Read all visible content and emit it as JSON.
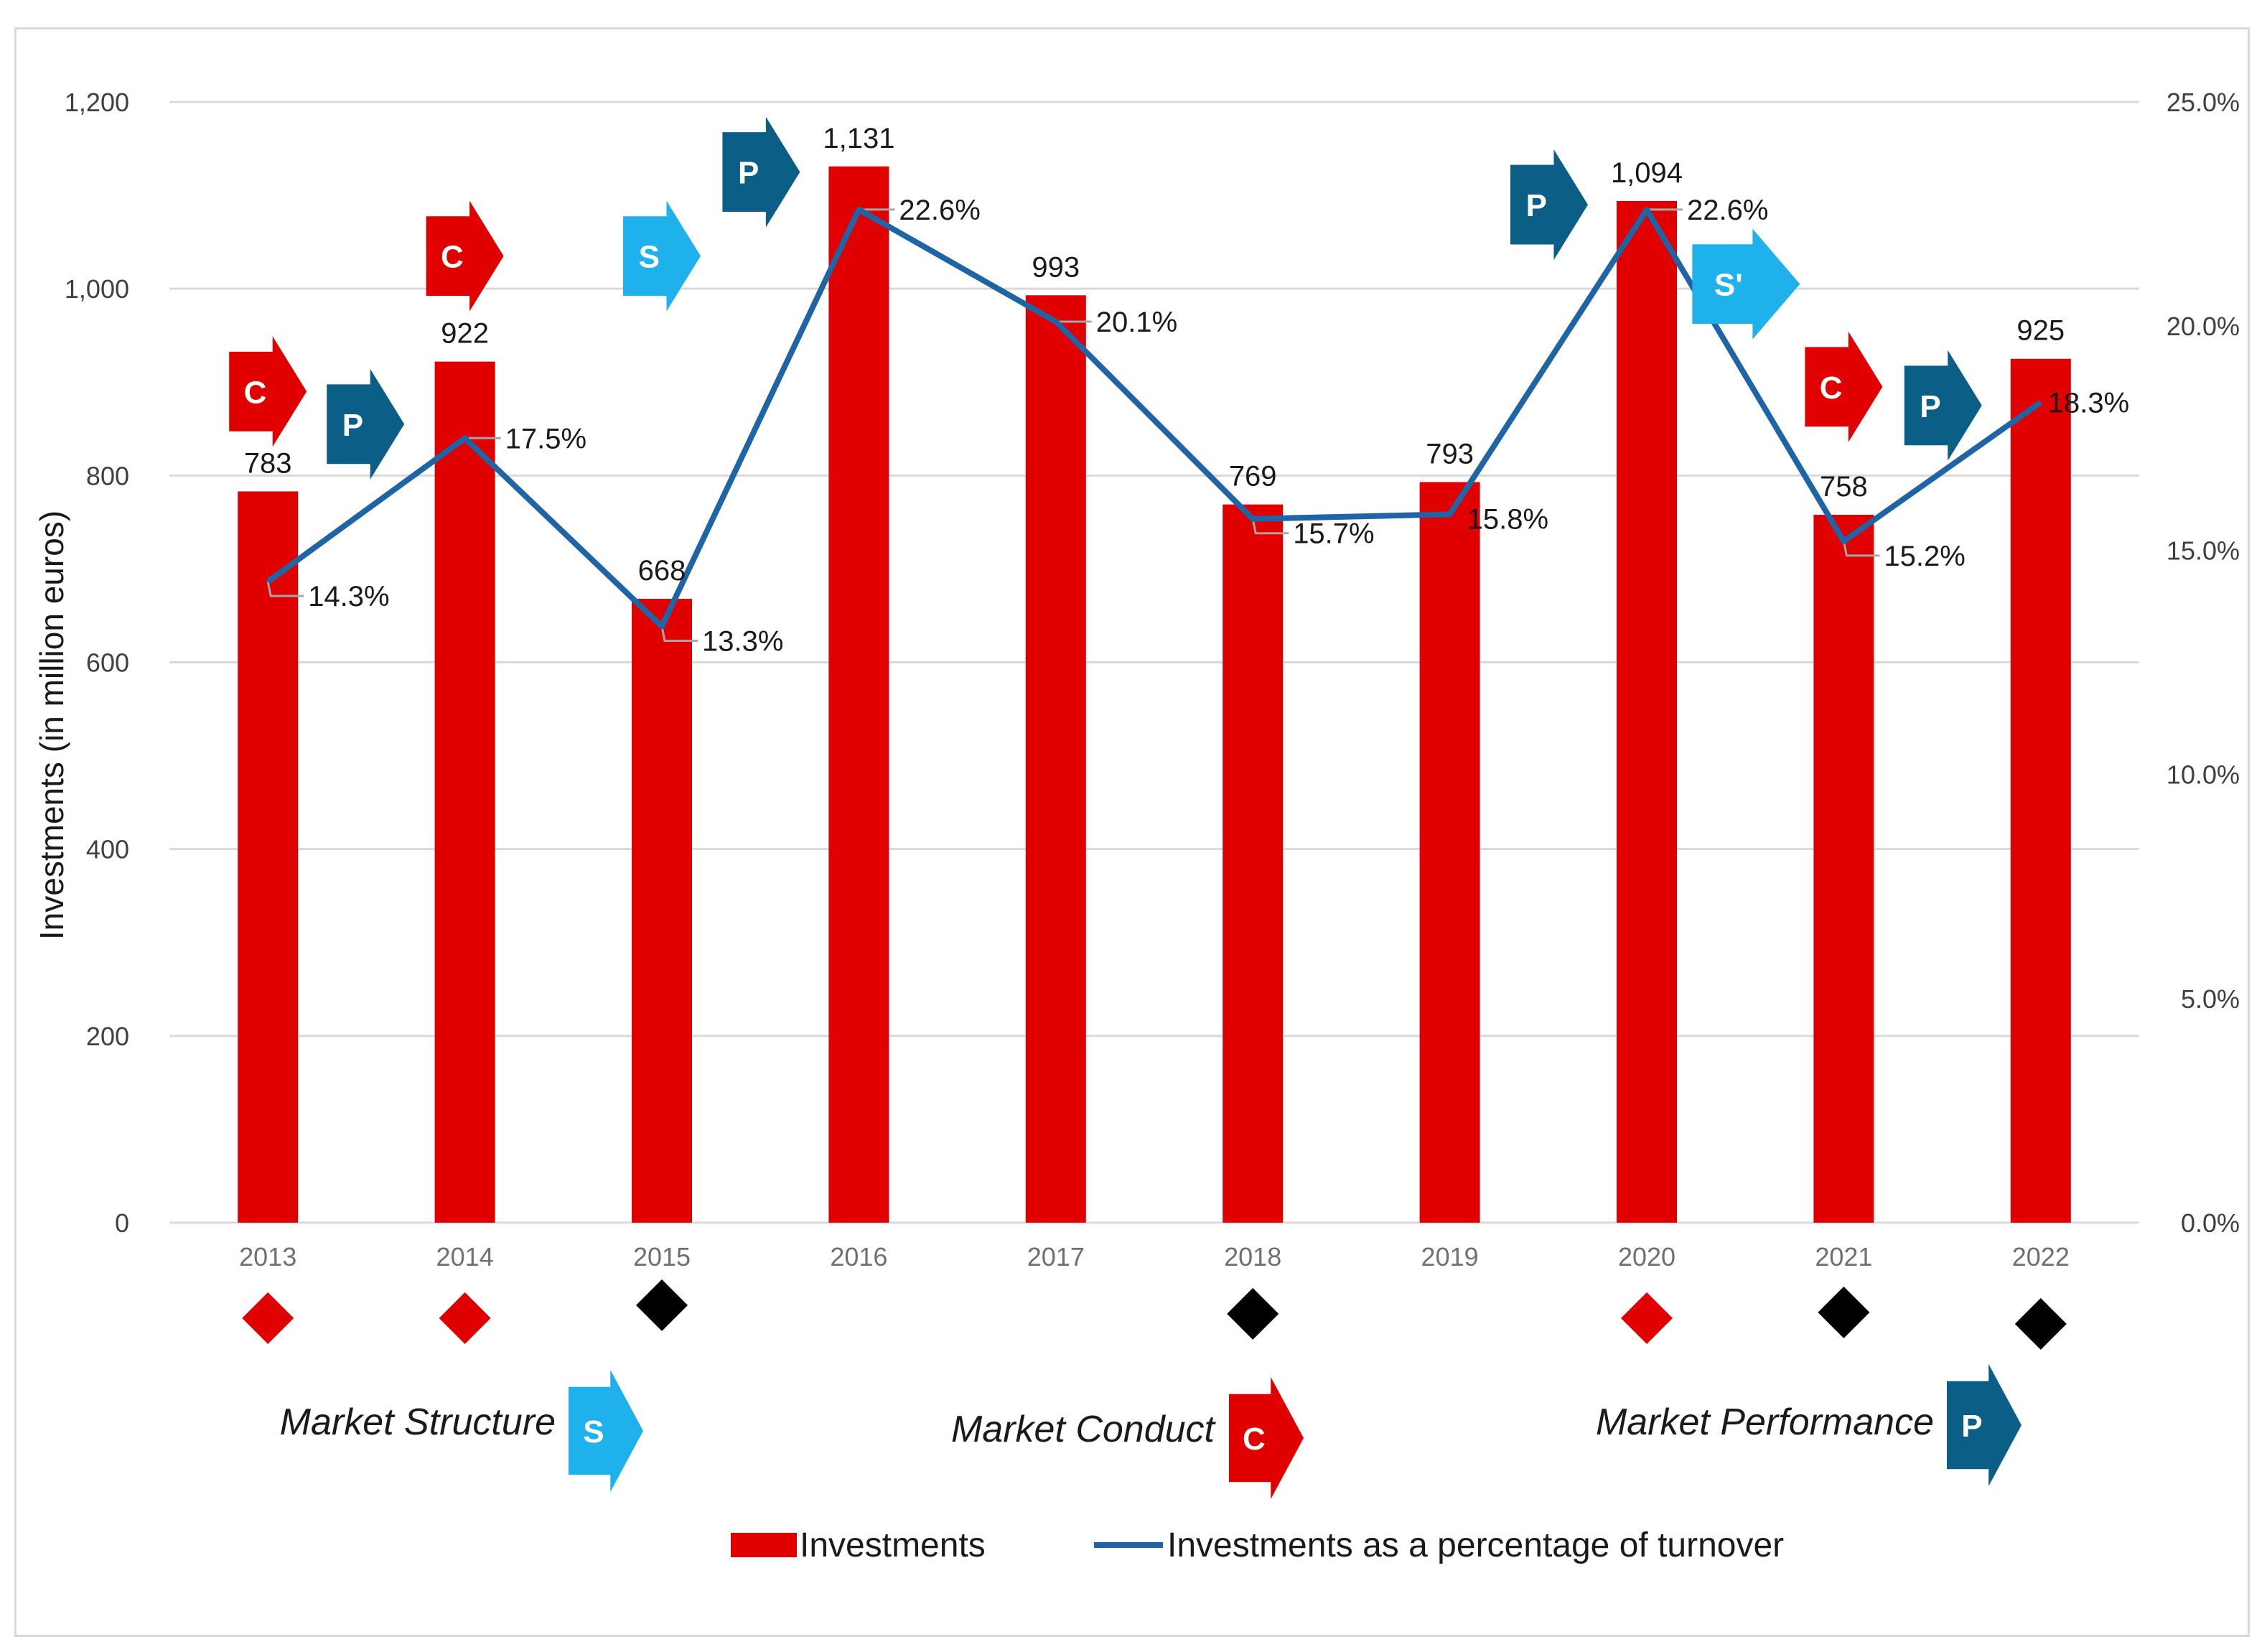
{
  "colors": {
    "bar": "#e00000",
    "line": "#1f64a4",
    "grid": "#d9d9d9",
    "structure": "#1eb1ec",
    "conduct": "#e00000",
    "performance": "#0b5f86",
    "diamond_red": "#e00000",
    "diamond_black": "#000000"
  },
  "chart_data": {
    "type": "bar",
    "categories": [
      "2013",
      "2014",
      "2015",
      "2016",
      "2017",
      "2018",
      "2019",
      "2020",
      "2021",
      "2022"
    ],
    "series": [
      {
        "name": "Investments",
        "axis": "left",
        "values": [
          783,
          922,
          668,
          1131,
          993,
          769,
          793,
          1094,
          758,
          925
        ],
        "labels": [
          "783",
          "922",
          "668",
          "1,131",
          "993",
          "769",
          "793",
          "1,094",
          "758",
          "925"
        ]
      },
      {
        "name": "Investments as a percentage of turnover",
        "axis": "right",
        "type": "line",
        "values": [
          14.3,
          17.5,
          13.3,
          22.6,
          20.1,
          15.7,
          15.8,
          22.6,
          15.2,
          18.3
        ],
        "labels": [
          "14.3%",
          "17.5%",
          "13.3%",
          "22.6%",
          "20.1%",
          "15.7%",
          "15.8%",
          "22.6%",
          "15.2%",
          "18.3%"
        ]
      }
    ],
    "ylabel": "Investments (in million euros)",
    "ylim": [
      0,
      1200
    ],
    "yticks": [
      "0",
      "200",
      "400",
      "600",
      "800",
      "1,000",
      "1,200"
    ],
    "y2lim": [
      0,
      25
    ],
    "y2ticks": [
      "0.0%",
      "5.0%",
      "10.0%",
      "15.0%",
      "20.0%",
      "25.0%"
    ],
    "grid": true,
    "legend_position": "bottom-center",
    "scp_arrows": [
      {
        "year": "2013",
        "letter": "C",
        "kind": "conduct",
        "value": 890,
        "offset": 0
      },
      {
        "year": "2013",
        "letter": "P",
        "kind": "performance",
        "value": 855,
        "offset": 1
      },
      {
        "year": "2014",
        "letter": "C",
        "kind": "conduct",
        "value": 1035,
        "offset": 0
      },
      {
        "year": "2015",
        "letter": "S",
        "kind": "structure",
        "value": 1035,
        "offset": 0
      },
      {
        "year": "2016",
        "letter": "P",
        "kind": "performance",
        "value": 1125,
        "offset": -1
      },
      {
        "year": "2020",
        "letter": "P",
        "kind": "performance",
        "value": 1090,
        "offset": -1
      },
      {
        "year": "2021",
        "letter": "S'",
        "kind": "structure",
        "value": 1005,
        "offset": -1
      },
      {
        "year": "2021",
        "letter": "C",
        "kind": "conduct",
        "value": 895,
        "offset": 0
      },
      {
        "year": "2022",
        "letter": "P",
        "kind": "performance",
        "value": 875,
        "offset": -1
      }
    ],
    "year_markers": [
      "red",
      "red",
      "black",
      "none",
      "none",
      "black",
      "none",
      "red",
      "black",
      "black"
    ]
  },
  "scp_legend": [
    {
      "text": "Market Structure",
      "letter": "S",
      "kind": "structure"
    },
    {
      "text": "Market  Conduct",
      "letter": "C",
      "kind": "conduct"
    },
    {
      "text": "Market  Performance",
      "letter": "P",
      "kind": "performance"
    }
  ],
  "legend": {
    "bar_label": "Investments",
    "line_label": "Investments as a percentage of turnover"
  }
}
